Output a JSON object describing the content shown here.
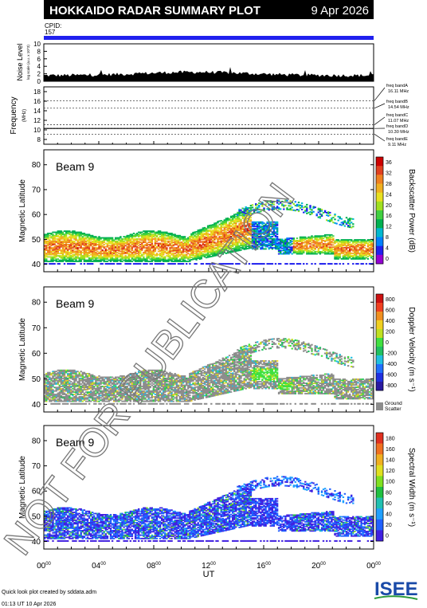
{
  "header": {
    "title": "HOKKAIDO RADAR SUMMARY PLOT",
    "date": "9 Apr 2026"
  },
  "cpid": {
    "label": "CPID:",
    "value": "157"
  },
  "noise_panel": {
    "ylabel": "Noise Level",
    "sublabel": "log scale (a.u. x 10^3)",
    "ticks": [
      "0",
      "2",
      "4",
      "6",
      "8",
      "10"
    ]
  },
  "freq_panel": {
    "ylabel": "Frequency",
    "unit": "(MHz)",
    "ticks": [
      "8",
      "10",
      "12",
      "14",
      "16",
      "18"
    ],
    "bands": [
      {
        "name": "freq bandA",
        "value": "16.11 MHz"
      },
      {
        "name": "freq bandB",
        "value": "14.54 MHz"
      },
      {
        "name": "freq bandC",
        "value": "11.07 MHz"
      },
      {
        "name": "freq bandD",
        "value": "10.30 MHz"
      },
      {
        "name": "freq bandE",
        "value": "9.11 MHz"
      }
    ]
  },
  "panels": [
    {
      "beam": "Beam  9",
      "ylabel": "Magnetic Latitude",
      "colorbar_label": "Backscatter Power (dB)",
      "colorbar_ticks": [
        "36",
        "32",
        "28",
        "24",
        "20",
        "16",
        "12",
        "8",
        "4",
        "0"
      ]
    },
    {
      "beam": "Beam  9",
      "ylabel": "Magnetic Latitude",
      "colorbar_label": "Doppler Velocity (m s⁻¹)",
      "colorbar_ticks": [
        "800",
        "600",
        "400",
        "200",
        "0",
        "-200",
        "-400",
        "-600",
        "-800"
      ],
      "ground_scatter": [
        "Ground",
        "Scatter"
      ]
    },
    {
      "beam": "Beam  9",
      "ylabel": "Magnetic Latitude",
      "colorbar_label": "Spectral Width (m s⁻¹)",
      "colorbar_ticks": [
        "180",
        "160",
        "140",
        "120",
        "100",
        "80",
        "60",
        "40",
        "20",
        "0"
      ]
    }
  ],
  "lat_ticks": [
    "40",
    "50",
    "60",
    "70",
    "80"
  ],
  "xaxis": {
    "label": "UT",
    "ticks": [
      {
        "hour": "00",
        "sup": "00"
      },
      {
        "hour": "04",
        "sup": "00"
      },
      {
        "hour": "08",
        "sup": "00"
      },
      {
        "hour": "12",
        "sup": "00"
      },
      {
        "hour": "16",
        "sup": "00"
      },
      {
        "hour": "20",
        "sup": "00"
      },
      {
        "hour": "00",
        "sup": "00"
      }
    ]
  },
  "footer": {
    "line1": "Quick look plot created by sddata.adm",
    "line2": "01:13 UT 10 Apr 2026"
  },
  "logo": {
    "text": "ISEE",
    "colors": [
      "#1a4aa8",
      "#2a9a3a"
    ]
  },
  "watermark": "NOT FOR PUBLICATION",
  "colors": {
    "header_bg": "#000000",
    "cpid_bar": "#2020ee",
    "ground_scatter": "#8c8c8c"
  },
  "chart_data": [
    {
      "type": "area",
      "title": "Noise Level",
      "ylim": [
        0,
        10
      ],
      "xlim_hours": [
        0,
        24
      ]
    },
    {
      "type": "line",
      "title": "Frequency",
      "ylim": [
        7,
        19
      ],
      "xlim_hours": [
        0,
        24
      ],
      "reference_lines_mhz": [
        16.11,
        14.54,
        11.07,
        10.3,
        9.11
      ]
    },
    {
      "type": "heatmap",
      "title": "Backscatter Power (dB)",
      "ylim": [
        37,
        86
      ],
      "xlim_hours": [
        0,
        24
      ],
      "color_range": [
        0,
        38
      ]
    },
    {
      "type": "heatmap",
      "title": "Doppler Velocity (m s-1)",
      "ylim": [
        37,
        86
      ],
      "xlim_hours": [
        0,
        24
      ],
      "color_range": [
        -900,
        900
      ]
    },
    {
      "type": "heatmap",
      "title": "Spectral Width (m s-1)",
      "ylim": [
        37,
        86
      ],
      "xlim_hours": [
        0,
        24
      ],
      "color_range": [
        0,
        190
      ]
    }
  ]
}
